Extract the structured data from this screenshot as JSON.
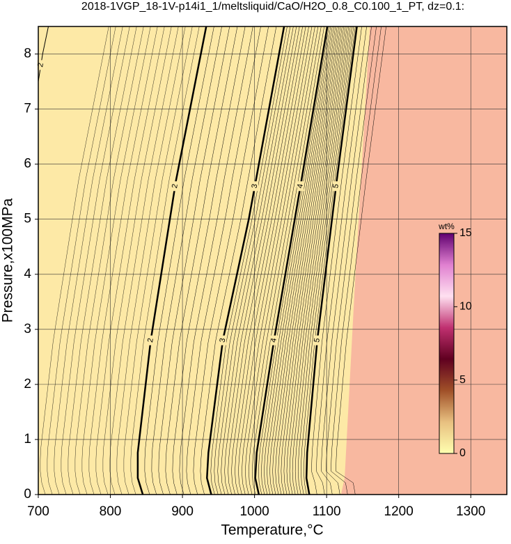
{
  "chart_data": {
    "type": "contour",
    "title": "2018-1VGP_18-1V-p14i1_1/meltsliquid/CaO/H2O_0.8_C0.100_1_PT, dz=0.1:",
    "x_label": "Temperature,°C",
    "y_label": "Pressure,x100MPa",
    "xlim": [
      700,
      1350
    ],
    "ylim": [
      0,
      8.5
    ],
    "xticks": [
      700,
      800,
      900,
      1000,
      1100,
      1200,
      1300
    ],
    "yticks": [
      0,
      1,
      2,
      3,
      4,
      5,
      6,
      7,
      8
    ],
    "grid": true,
    "fill_colors": [
      "#fde9a6",
      "#f8b8a0"
    ],
    "phase_boundary": {
      "x": [
        1120,
        1125,
        1140,
        1160
      ],
      "y": [
        0,
        0.3,
        4,
        8.5
      ]
    },
    "contours": [
      {
        "level": 2,
        "x": [
          700,
          706,
          714
        ],
        "y": [
          7.5,
          8.0,
          8.5
        ]
      },
      {
        "level": 2,
        "x": [
          845,
          838,
          838,
          856,
          891,
          933
        ],
        "y": [
          0,
          0.3,
          0.76,
          2.8,
          5.7,
          8.5
        ]
      },
      {
        "level": 3,
        "x": [
          940,
          934,
          936,
          956,
          992,
          1041
        ],
        "y": [
          0,
          0.3,
          0.76,
          2.8,
          5.0,
          8.5
        ]
      },
      {
        "level": 4,
        "x": [
          1006,
          1001,
          1003,
          1027,
          1065,
          1101
        ],
        "y": [
          0,
          0.3,
          0.76,
          2.8,
          5.7,
          8.5
        ]
      },
      {
        "level": 5,
        "x": [
          1076,
          1072,
          1073,
          1087,
          1114,
          1142
        ],
        "y": [
          0,
          0.3,
          0.76,
          2.8,
          5.7,
          8.5
        ]
      }
    ],
    "colorbar": {
      "label": "wt%",
      "lim": [
        0,
        15
      ],
      "ticks": [
        0,
        5,
        10,
        15
      ],
      "colors": [
        "#ffffb0",
        "#e8c080",
        "#a05028",
        "#600020",
        "#c03070",
        "#ffe0f0",
        "#e080d0",
        "#600070"
      ]
    }
  }
}
